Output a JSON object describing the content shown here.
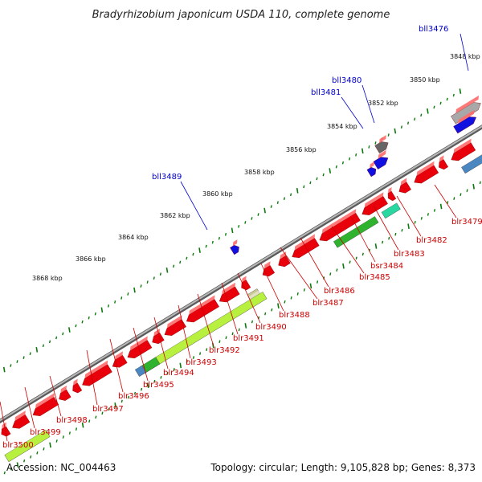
{
  "header": {
    "title": "Bradyrhizobium japonicum USDA 110, complete genome"
  },
  "footer": {
    "accession": "Accession: NC_004463",
    "summary": "Topology: circular; Length: 9,105,828 bp; Genes: 8,373"
  },
  "colors": {
    "forward_gene": "#e8000b",
    "reverse_gene": "#1010e0",
    "backbone": "#8a8a8a",
    "tick": "#0a7a0a",
    "forward_label": "#cc0000",
    "reverse_label": "#0000cc",
    "rna_green": "#2fb32f",
    "rna_teal": "#28d8a0",
    "rna_lime": "#b8f040",
    "rna_steel": "#4a86c0",
    "rna_olive": "#c8c890",
    "grey_block": "#666666"
  },
  "scale_labels": [
    "3848 kbp",
    "3850 kbp",
    "3852 kbp",
    "3854 kbp",
    "3856 kbp",
    "3858 kbp",
    "3860 kbp",
    "3862 kbp",
    "3864 kbp",
    "3866 kbp",
    "3868 kbp"
  ],
  "reverse_genes": [
    "bll3476",
    "bll3480",
    "bll3481",
    "bll3489"
  ],
  "forward_genes": [
    "blr3479",
    "blr3482",
    "blr3483",
    "bsr3484",
    "blr3485",
    "blr3486",
    "blr3487",
    "blr3488",
    "blr3490",
    "blr3491",
    "blr3492",
    "blr3493",
    "blr3494",
    "blr3495",
    "blr3496",
    "blr3497",
    "blr3498",
    "blr3499",
    "blr3500"
  ]
}
